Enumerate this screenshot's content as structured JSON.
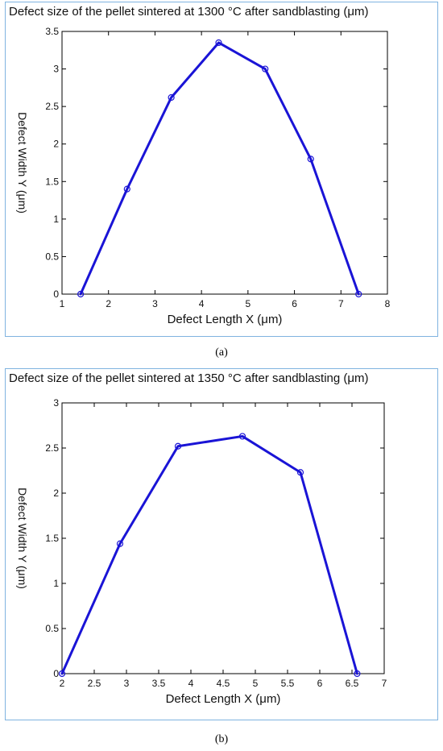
{
  "chart_data": [
    {
      "type": "line",
      "title": "Defect size of the pellet sintered at 1300 °C after sandblasting (μm)",
      "xlabel": "Defect Length X (μm)",
      "ylabel": "Defect Width Y (μm)",
      "xlim": [
        1,
        8
      ],
      "ylim": [
        0,
        3.5
      ],
      "xticks": [
        "1",
        "2",
        "3",
        "4",
        "5",
        "6",
        "7",
        "8"
      ],
      "yticks": [
        "0",
        "0.5",
        "1",
        "1.5",
        "2",
        "2.5",
        "3",
        "3.5"
      ],
      "series": [
        {
          "x": [
            1.4,
            2.4,
            3.35,
            4.37,
            5.37,
            6.35,
            7.38
          ],
          "y": [
            0.0,
            1.4,
            2.62,
            3.35,
            3.0,
            1.8,
            0.0
          ]
        }
      ],
      "line_color": "#1a14d6",
      "caption": "(a)"
    },
    {
      "type": "line",
      "title": "Defect size of the pellet sintered at 1350 °C after sandblasting (μm)",
      "xlabel": "Defect Length X (μm)",
      "ylabel": "Defect Width Y (μm)",
      "xlim": [
        2,
        7
      ],
      "ylim": [
        0,
        3
      ],
      "xticks": [
        "2",
        "2.5",
        "3",
        "3.5",
        "4",
        "4.5",
        "5",
        "5.5",
        "6",
        "6.5",
        "7"
      ],
      "yticks": [
        "0",
        "0.5",
        "1",
        "1.5",
        "2",
        "2.5",
        "3"
      ],
      "series": [
        {
          "x": [
            2.0,
            2.9,
            3.8,
            4.8,
            5.7,
            6.58
          ],
          "y": [
            0.0,
            1.44,
            2.52,
            2.63,
            2.23,
            0.0
          ]
        }
      ],
      "line_color": "#1a14d6",
      "caption": "(b)"
    }
  ]
}
